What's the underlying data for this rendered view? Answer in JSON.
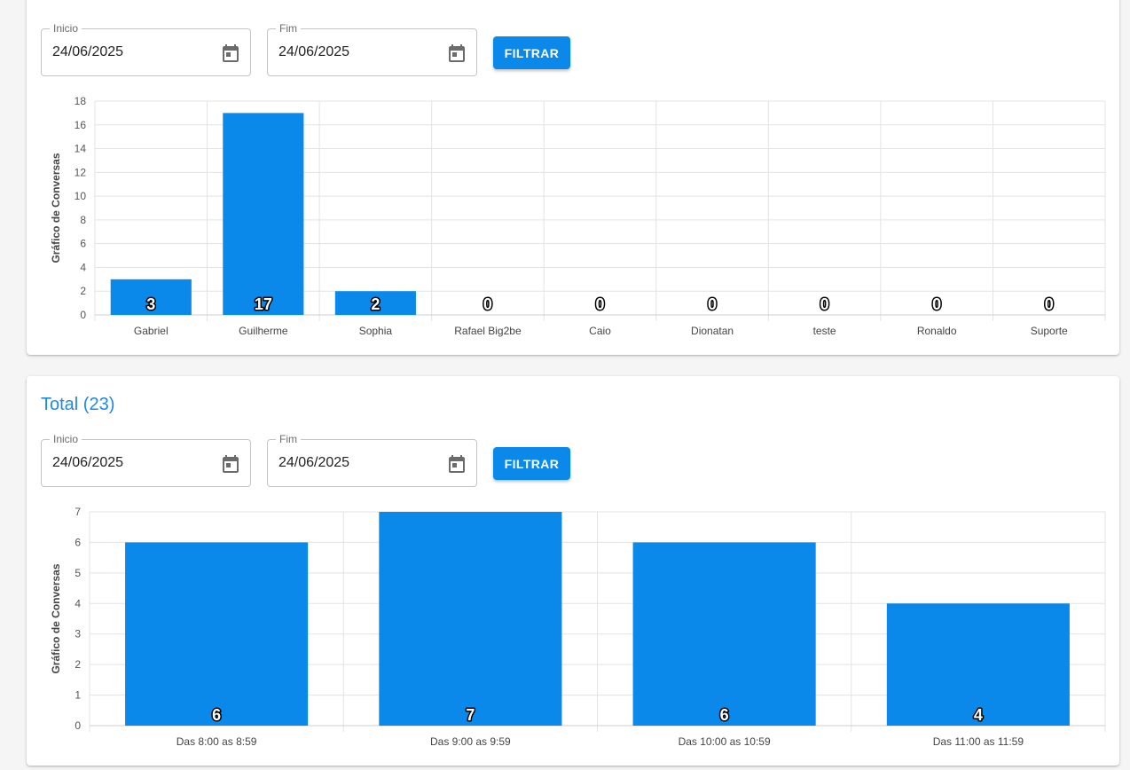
{
  "colors": {
    "accent": "#1e88e5",
    "bar": "#0a89ea",
    "grid": "#e3e3e3"
  },
  "card1": {
    "start": {
      "label": "Inicio",
      "value": "24/06/2025",
      "icon": "calendar-icon"
    },
    "end": {
      "label": "Fim",
      "value": "24/06/2025",
      "icon": "calendar-icon"
    },
    "filter_label": "FILTRAR"
  },
  "card2": {
    "title": "Total (23)",
    "start": {
      "label": "Inicio",
      "value": "24/06/2025",
      "icon": "calendar-icon"
    },
    "end": {
      "label": "Fim",
      "value": "24/06/2025",
      "icon": "calendar-icon"
    },
    "filter_label": "FILTRAR"
  },
  "chart_data": [
    {
      "type": "bar",
      "categories": [
        "Gabriel",
        "Guilherme",
        "Sophia",
        "Rafael Big2be",
        "Caio",
        "Dionatan",
        "teste",
        "Ronaldo",
        "Suporte"
      ],
      "values": [
        3,
        17,
        2,
        0,
        0,
        0,
        0,
        0,
        0
      ],
      "ylabel": "Gráfico de Conversas",
      "ylim": [
        0,
        18
      ],
      "yticks": [
        0,
        2,
        4,
        6,
        8,
        10,
        12,
        14,
        16,
        18
      ],
      "grid": true,
      "data_labels": true
    },
    {
      "type": "bar",
      "categories": [
        "Das 8:00 as 8:59",
        "Das 9:00 as 9:59",
        "Das 10:00 as 10:59",
        "Das 11:00 as 11:59"
      ],
      "values": [
        6,
        7,
        6,
        4
      ],
      "ylabel": "Gráfico de Conversas",
      "ylim": [
        0,
        7
      ],
      "yticks": [
        0,
        1,
        2,
        3,
        4,
        5,
        6,
        7
      ],
      "grid": true,
      "data_labels": true
    }
  ]
}
